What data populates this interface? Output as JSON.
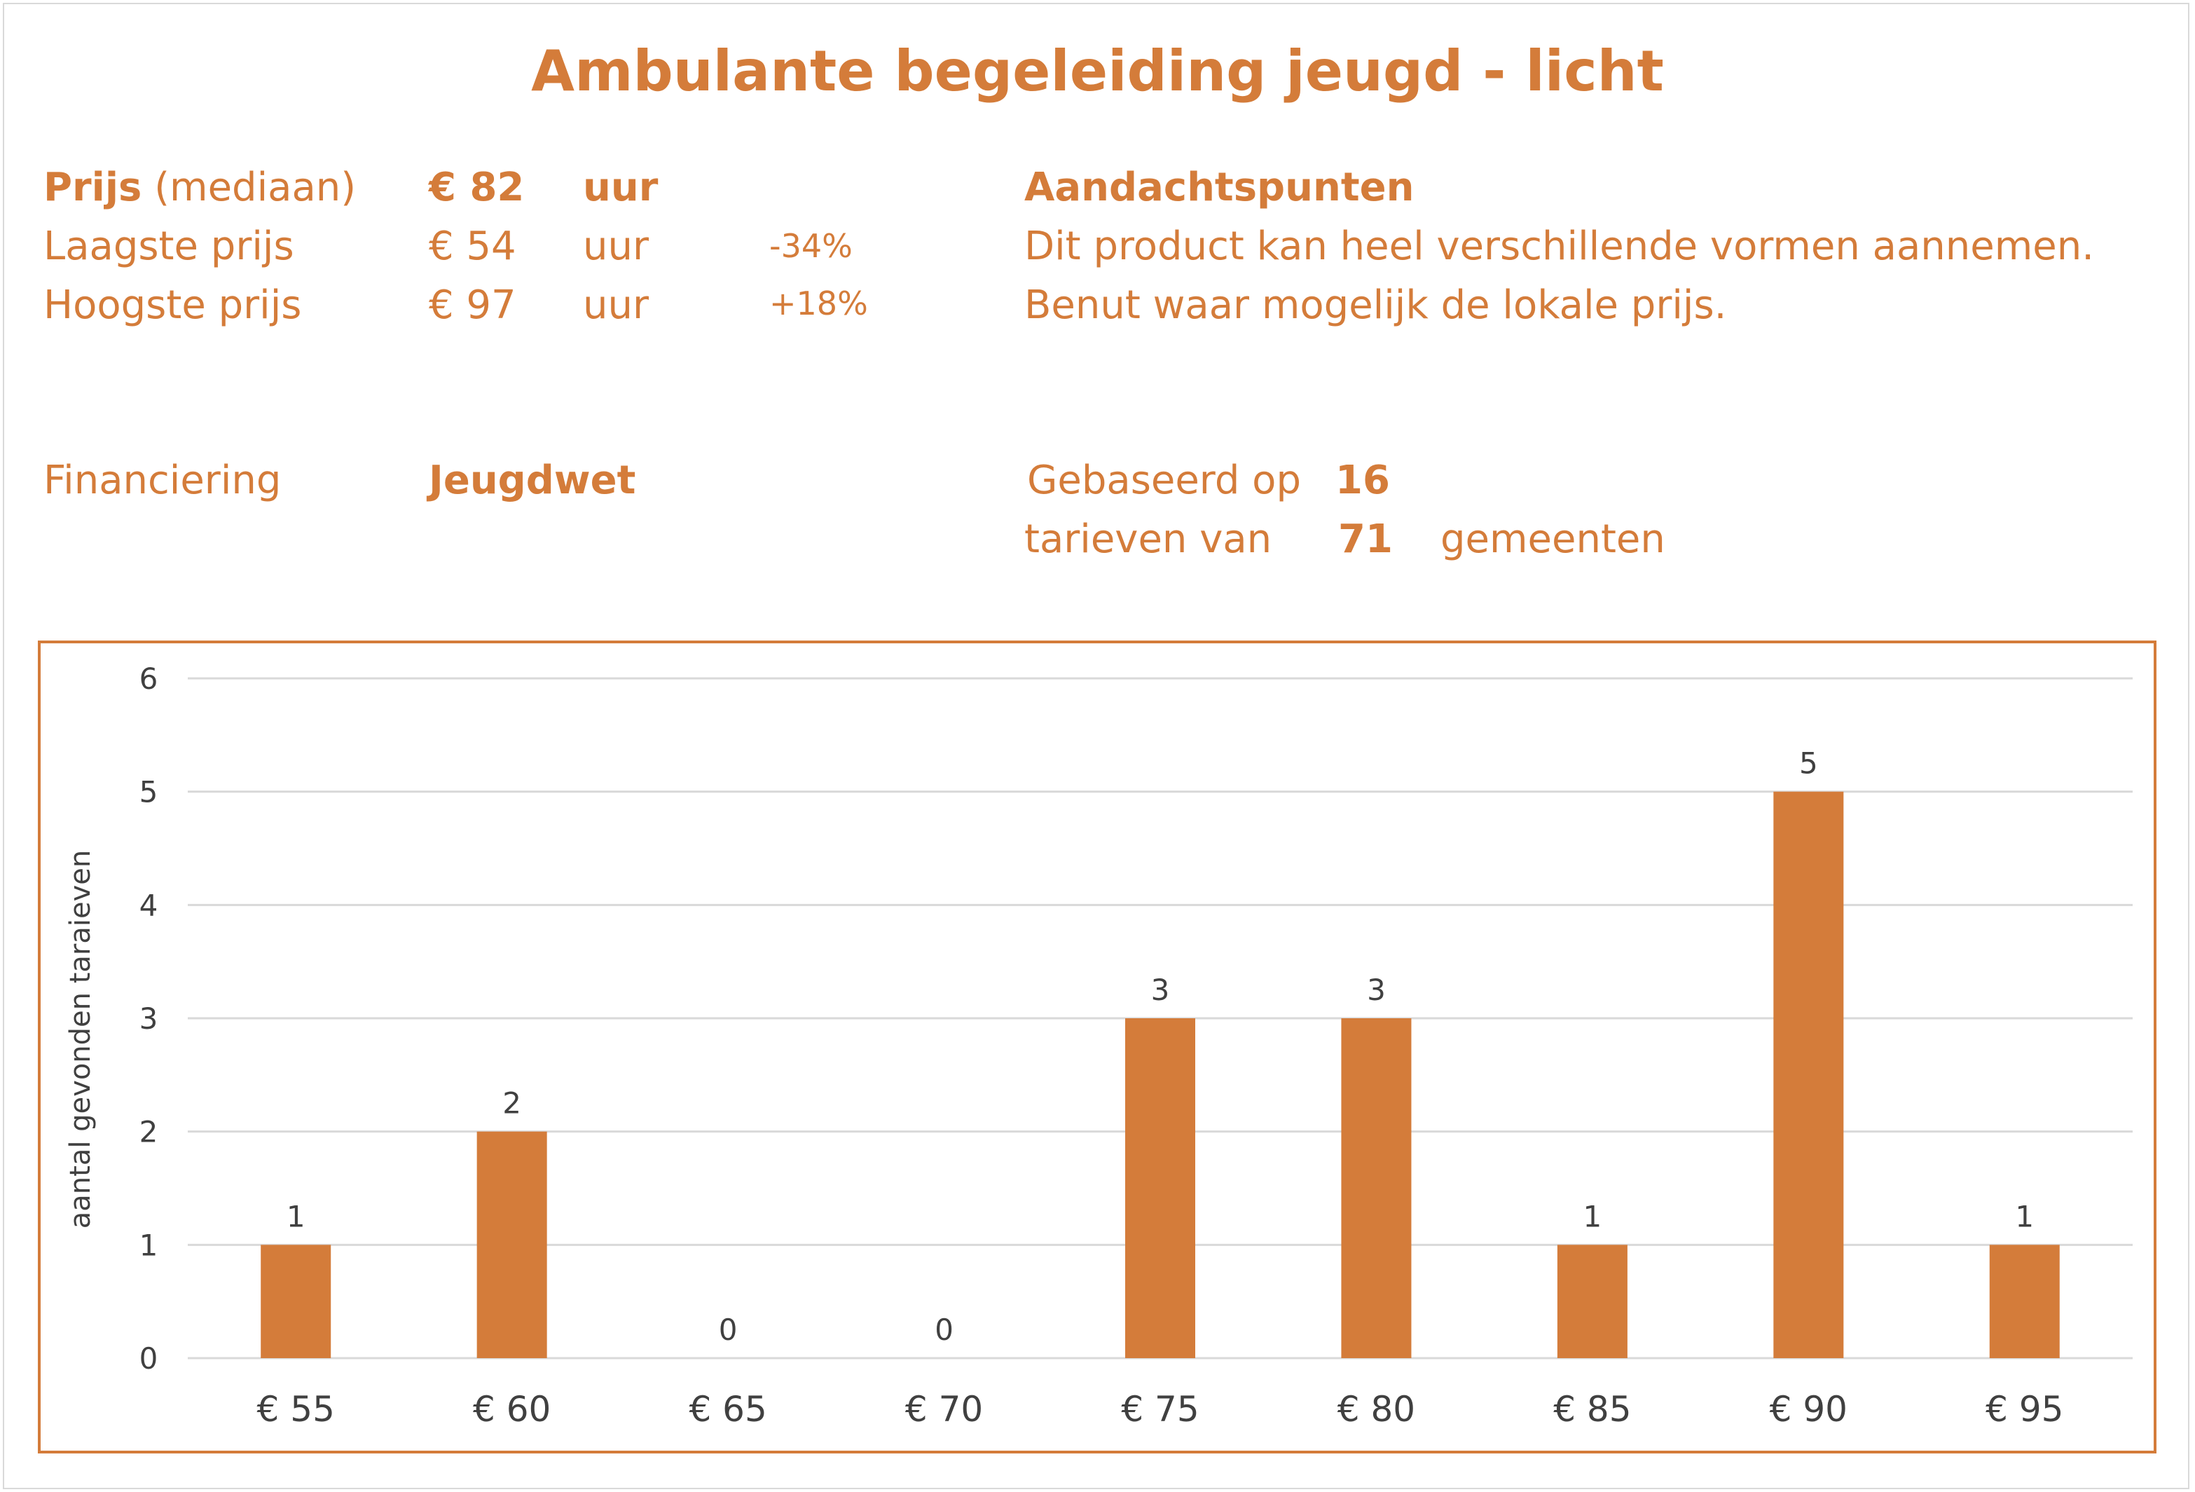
{
  "title": "Ambulante begeleiding jeugd - licht",
  "prices": {
    "median_label_bold": "Prijs",
    "median_label_rest": "(mediaan)",
    "median_value": "€ 82",
    "median_unit": "uur",
    "lowest_label": "Laagste prijs",
    "lowest_value": "€ 54",
    "lowest_unit": "uur",
    "lowest_pct": "-34%",
    "highest_label": "Hoogste prijs",
    "highest_value": "€ 97",
    "highest_unit": "uur",
    "highest_pct": "+18%"
  },
  "notes": {
    "heading": "Aandachtspunten",
    "line1": "Dit product kan heel verschillende vormen aannemen.",
    "line2": "Benut waar mogelijk de lokale prijs."
  },
  "financing": {
    "label": "Financiering",
    "value": "Jeugdwet"
  },
  "basis": {
    "prefix": "Gebaseerd op",
    "count": "16",
    "middle": "tarieven van",
    "municipalities": "71",
    "suffix": "gemeenten"
  },
  "colors": {
    "accent": "#D47C3A",
    "bar": "#D47C3A",
    "grid": "#d9d9d9",
    "text_dark": "#404040"
  },
  "chart_data": {
    "type": "bar",
    "categories": [
      "€ 55",
      "€ 60",
      "€ 65",
      "€ 70",
      "€ 75",
      "€ 80",
      "€ 85",
      "€ 90",
      "€ 95"
    ],
    "values": [
      1,
      2,
      0,
      0,
      3,
      3,
      1,
      5,
      1
    ],
    "data_labels": [
      "1",
      "2",
      "0",
      "0",
      "3",
      "3",
      "1",
      "5",
      "1"
    ],
    "yticks": [
      "0",
      "1",
      "2",
      "3",
      "4",
      "5",
      "6"
    ],
    "ylim": [
      0,
      6
    ],
    "xlabel": "",
    "ylabel": "aantal gevonden taraieven",
    "grid": true,
    "legend": "none"
  }
}
